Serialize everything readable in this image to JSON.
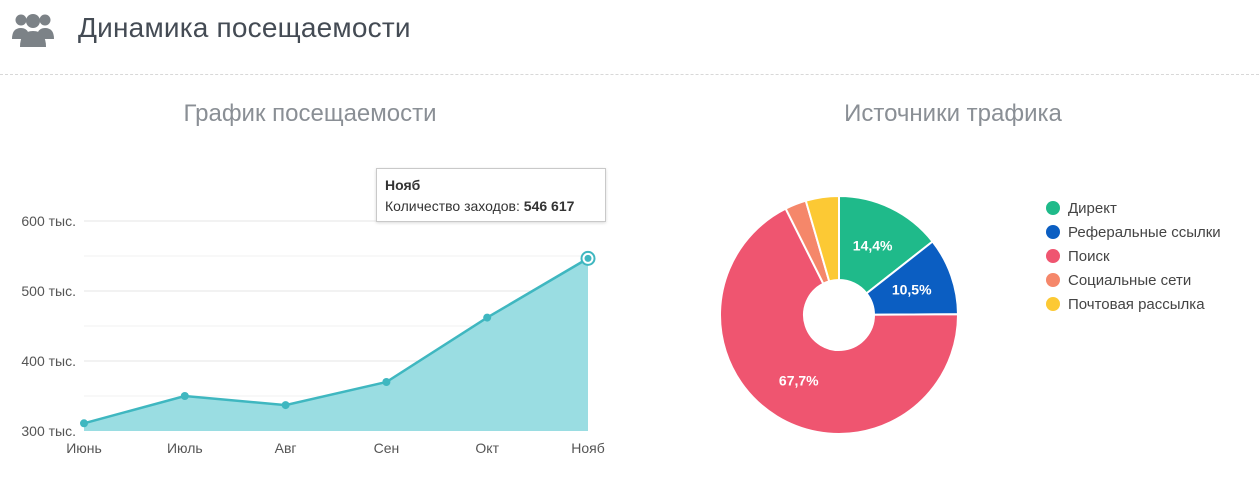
{
  "header": {
    "title": "Динамика посещаемости",
    "icon": "users-icon",
    "icon_color": "#7c8287"
  },
  "line_chart": {
    "title": "График посещаемости",
    "tooltip": {
      "title": "Нояб",
      "label": "Количество заходов:",
      "value": "546 617"
    }
  },
  "pie_chart": {
    "title": "Источники трафика"
  },
  "chart_data": [
    {
      "type": "area",
      "title": "График посещаемости",
      "categories": [
        "Июнь",
        "Июль",
        "Авг",
        "Сен",
        "Окт",
        "Нояб"
      ],
      "series": [
        {
          "name": "Количество заходов",
          "values": [
            311000,
            350000,
            337000,
            370000,
            462000,
            546617
          ]
        }
      ],
      "ylim": [
        300000,
        630000
      ],
      "y_ticks": [
        300000,
        400000,
        500000,
        600000
      ],
      "y_tick_labels": [
        "300 тыс.",
        "400 тыс.",
        "500 тыс.",
        "600 тыс."
      ],
      "grid": true,
      "colors": {
        "line": "#3fb7c0",
        "fill": "#9adde2"
      }
    },
    {
      "type": "pie",
      "title": "Источники трафика",
      "labels": [
        "Директ",
        "Реферальные ссылки",
        "Поиск",
        "Социальные сети",
        "Почтовая рассылка"
      ],
      "values": [
        14.4,
        10.5,
        67.7,
        2.9,
        4.5
      ],
      "data_labels": [
        "14,4%",
        "10,5%",
        "67,7%",
        "",
        ""
      ],
      "colors": [
        "#1fba8a",
        "#0b5ec2",
        "#ef5570",
        "#f5876a",
        "#fcc934"
      ],
      "legend": "right"
    }
  ]
}
